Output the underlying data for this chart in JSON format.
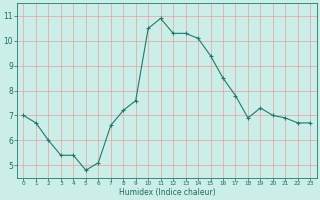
{
  "x": [
    0,
    1,
    2,
    3,
    4,
    5,
    6,
    7,
    8,
    9,
    10,
    11,
    12,
    13,
    14,
    15,
    16,
    17,
    18,
    19,
    20,
    21,
    22,
    23
  ],
  "y": [
    7.0,
    6.7,
    6.0,
    5.4,
    5.4,
    4.8,
    5.1,
    6.6,
    7.2,
    7.6,
    10.5,
    10.9,
    10.3,
    10.3,
    10.1,
    9.4,
    8.5,
    7.8,
    6.9,
    7.3,
    7.0,
    6.9,
    6.7,
    6.7
  ],
  "xlabel": "Humidex (Indice chaleur)",
  "xlim": [
    -0.5,
    23.5
  ],
  "ylim": [
    4.5,
    11.5
  ],
  "yticks": [
    5,
    6,
    7,
    8,
    9,
    10,
    11
  ],
  "xticks": [
    0,
    1,
    2,
    3,
    4,
    5,
    6,
    7,
    8,
    9,
    10,
    11,
    12,
    13,
    14,
    15,
    16,
    17,
    18,
    19,
    20,
    21,
    22,
    23
  ],
  "line_color": "#1e7a6e",
  "marker": "+",
  "bg_color": "#cceee8",
  "grid_color": "#e8a0a0",
  "tick_color": "#1e6a60",
  "xlabel_color": "#1e6a60",
  "spine_color": "#1e7a6e"
}
